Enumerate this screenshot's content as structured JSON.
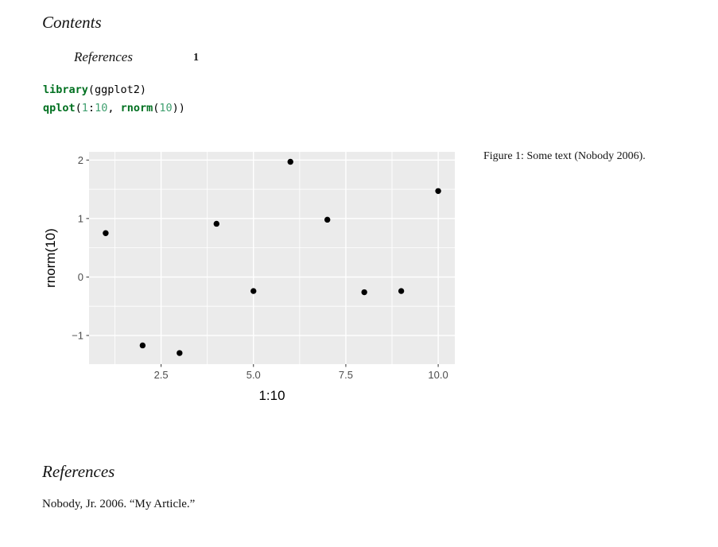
{
  "toc": {
    "title": "Contents",
    "entries": [
      {
        "label": "References",
        "page": "1"
      }
    ]
  },
  "code": {
    "lines": [
      [
        {
          "t": "library",
          "c": "kw"
        },
        {
          "t": "(ggplot2)",
          "c": "pl"
        }
      ],
      [
        {
          "t": "qplot",
          "c": "kw"
        },
        {
          "t": "(",
          "c": "pl"
        },
        {
          "t": "1",
          "c": "num"
        },
        {
          "t": ":",
          "c": "pl"
        },
        {
          "t": "10",
          "c": "num"
        },
        {
          "t": ", ",
          "c": "pl"
        },
        {
          "t": "rnorm",
          "c": "kw"
        },
        {
          "t": "(",
          "c": "pl"
        },
        {
          "t": "10",
          "c": "num"
        },
        {
          "t": "))",
          "c": "pl"
        }
      ]
    ]
  },
  "figure": {
    "caption": "Figure 1: Some text (Nobody 2006)."
  },
  "references": {
    "title": "References",
    "entries": [
      "Nobody, Jr. 2006. “My Article.”"
    ]
  },
  "colors": {
    "code_keyword": "#007020",
    "code_number": "#40a070",
    "text": "#141414"
  },
  "chart_data": {
    "type": "scatter",
    "title": "",
    "xlabel": "1:10",
    "ylabel": "rnorm(10)",
    "x": [
      1,
      2,
      3,
      4,
      5,
      6,
      7,
      8,
      9,
      10
    ],
    "y": [
      0.75,
      -1.17,
      -1.3,
      0.91,
      -0.24,
      1.97,
      0.98,
      -0.26,
      -0.24,
      1.47
    ],
    "xlim": [
      0.55,
      10.45
    ],
    "ylim": [
      -1.49,
      2.14
    ],
    "x_ticks": [
      2.5,
      5.0,
      7.5,
      10.0
    ],
    "x_tick_labels": [
      "2.5",
      "5.0",
      "7.5",
      "10.0"
    ],
    "y_ticks": [
      -1,
      0,
      1,
      2
    ],
    "y_tick_labels": [
      "−1",
      "0",
      "1",
      "2"
    ],
    "x_minor_ticks": [
      1.25,
      3.75,
      6.25,
      8.75
    ],
    "y_minor_ticks": [
      -0.5,
      0.5,
      1.5
    ],
    "grid": true,
    "legend": "none",
    "panel_bg": "#EBEBEB",
    "grid_color": "#FFFFFF",
    "point_color": "#000000",
    "tick_mark_color": "#333333",
    "tick_label_color": "#4D4D4D",
    "axis_title_color": "#000000"
  }
}
